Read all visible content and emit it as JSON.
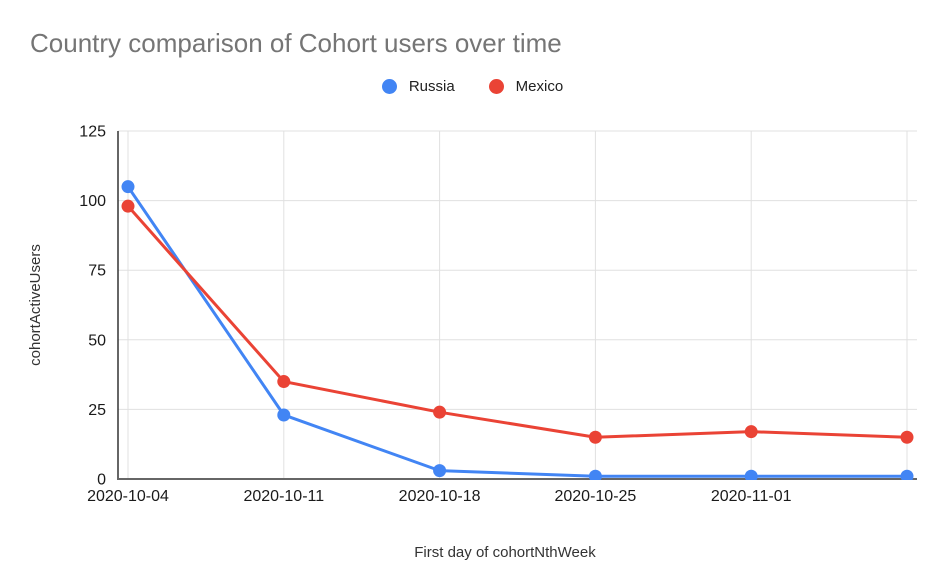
{
  "chart_data": {
    "type": "line",
    "title": "Country comparison of Cohort users over time",
    "xlabel": "First day of cohortNthWeek",
    "ylabel": "cohortActiveUsers",
    "ylim": [
      0,
      125
    ],
    "y_ticks": [
      0,
      25,
      50,
      75,
      100,
      125
    ],
    "x_tick_labels": [
      "2020-10-04",
      "2020-10-11",
      "2020-10-18",
      "2020-10-25",
      "2020-11-01"
    ],
    "num_points": 6,
    "grid": true,
    "legend_position": "top",
    "series": [
      {
        "name": "Russia",
        "color": "#4285F4",
        "values": [
          105,
          23,
          3,
          1,
          1,
          1
        ]
      },
      {
        "name": "Mexico",
        "color": "#EA4335",
        "values": [
          98,
          35,
          24,
          15,
          17,
          15
        ]
      }
    ],
    "colors": {
      "title": "#757575",
      "tick_label": "#1a1a1a",
      "axis_title": "#333333",
      "grid": "#e0e0e0",
      "y_axis_line": "#333333",
      "x_axis_line": "#666666",
      "background": "#ffffff"
    }
  }
}
